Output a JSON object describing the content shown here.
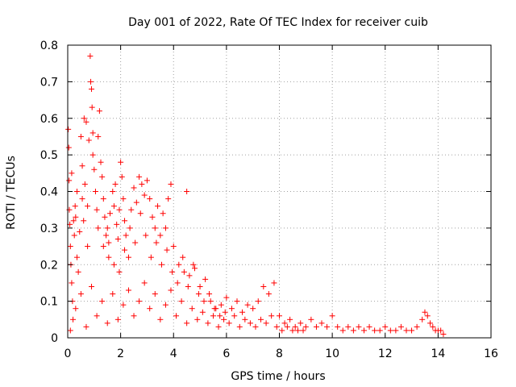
{
  "chart_data": {
    "type": "scatter",
    "title": "Day 001 of 2022, Rate Of TEC Index for receiver cuib",
    "xlabel": "GPS time / hours",
    "ylabel": "ROTI / TECUs",
    "xlim": [
      0,
      16
    ],
    "ylim": [
      0,
      0.8
    ],
    "grid": true,
    "marker": "plus",
    "color": "#ff0000",
    "x_ticks": [
      0,
      2,
      4,
      6,
      8,
      10,
      12,
      14,
      16
    ],
    "y_ticks": [
      0,
      0.1,
      0.2,
      0.3,
      0.4,
      0.5,
      0.6,
      0.7,
      0.8
    ],
    "x_tick_labels": [
      "0",
      "2",
      "4",
      "6",
      "8",
      "10",
      "12",
      "14",
      "16"
    ],
    "y_tick_labels": [
      "0",
      "0.1",
      "0.2",
      "0.3",
      "0.4",
      "0.5",
      "0.6",
      "0.7",
      "0.8"
    ],
    "series": [
      {
        "name": "ROTI",
        "points": [
          [
            0.02,
            0.57
          ],
          [
            0.04,
            0.52
          ],
          [
            0.05,
            0.43
          ],
          [
            0.06,
            0.35
          ],
          [
            0.08,
            0.31
          ],
          [
            0.1,
            0.25
          ],
          [
            0.12,
            0.2
          ],
          [
            0.15,
            0.15
          ],
          [
            0.18,
            0.1
          ],
          [
            0.2,
            0.05
          ],
          [
            0.22,
            0.32
          ],
          [
            0.25,
            0.28
          ],
          [
            0.28,
            0.36
          ],
          [
            0.3,
            0.33
          ],
          [
            0.35,
            0.22
          ],
          [
            0.4,
            0.18
          ],
          [
            0.45,
            0.29
          ],
          [
            0.5,
            0.55
          ],
          [
            0.55,
            0.38
          ],
          [
            0.6,
            0.32
          ],
          [
            0.62,
            0.6
          ],
          [
            0.65,
            0.42
          ],
          [
            0.7,
            0.59
          ],
          [
            0.75,
            0.25
          ],
          [
            0.8,
            0.54
          ],
          [
            0.85,
            0.77
          ],
          [
            0.87,
            0.7
          ],
          [
            0.9,
            0.68
          ],
          [
            0.92,
            0.63
          ],
          [
            0.95,
            0.56
          ],
          [
            1.0,
            0.46
          ],
          [
            1.05,
            0.4
          ],
          [
            1.1,
            0.35
          ],
          [
            1.15,
            0.55
          ],
          [
            1.2,
            0.62
          ],
          [
            1.25,
            0.48
          ],
          [
            1.3,
            0.44
          ],
          [
            1.35,
            0.38
          ],
          [
            1.4,
            0.33
          ],
          [
            1.45,
            0.28
          ],
          [
            1.5,
            0.3
          ],
          [
            1.55,
            0.26
          ],
          [
            1.6,
            0.34
          ],
          [
            1.7,
            0.4
          ],
          [
            1.75,
            0.36
          ],
          [
            1.8,
            0.42
          ],
          [
            1.85,
            0.31
          ],
          [
            1.9,
            0.27
          ],
          [
            1.95,
            0.35
          ],
          [
            2.0,
            0.48
          ],
          [
            2.05,
            0.44
          ],
          [
            2.1,
            0.38
          ],
          [
            2.15,
            0.32
          ],
          [
            2.2,
            0.28
          ],
          [
            2.3,
            0.22
          ],
          [
            2.4,
            0.35
          ],
          [
            2.5,
            0.41
          ],
          [
            2.6,
            0.37
          ],
          [
            2.7,
            0.44
          ],
          [
            2.8,
            0.42
          ],
          [
            2.9,
            0.39
          ],
          [
            3.0,
            0.43
          ],
          [
            3.1,
            0.38
          ],
          [
            3.2,
            0.33
          ],
          [
            3.3,
            0.3
          ],
          [
            3.4,
            0.36
          ],
          [
            3.5,
            0.28
          ],
          [
            3.6,
            0.34
          ],
          [
            3.7,
            0.3
          ],
          [
            3.8,
            0.38
          ],
          [
            3.9,
            0.42
          ],
          [
            4.0,
            0.25
          ],
          [
            4.2,
            0.2
          ],
          [
            4.4,
            0.18
          ],
          [
            4.5,
            0.4
          ],
          [
            4.6,
            0.17
          ],
          [
            4.8,
            0.19
          ],
          [
            5.0,
            0.14
          ],
          [
            5.2,
            0.16
          ],
          [
            5.4,
            0.1
          ],
          [
            5.6,
            0.08
          ],
          [
            5.8,
            0.09
          ],
          [
            6.0,
            0.11
          ],
          [
            6.2,
            0.08
          ],
          [
            6.4,
            0.1
          ],
          [
            6.6,
            0.07
          ],
          [
            6.8,
            0.09
          ],
          [
            7.0,
            0.08
          ],
          [
            7.2,
            0.1
          ],
          [
            7.4,
            0.14
          ],
          [
            7.6,
            0.12
          ],
          [
            7.8,
            0.15
          ],
          [
            8.0,
            0.06
          ],
          [
            8.2,
            0.04
          ],
          [
            8.4,
            0.05
          ],
          [
            8.6,
            0.03
          ],
          [
            8.8,
            0.04
          ],
          [
            9.0,
            0.03
          ],
          [
            9.2,
            0.05
          ],
          [
            9.4,
            0.03
          ],
          [
            9.6,
            0.04
          ],
          [
            9.8,
            0.03
          ],
          [
            10.0,
            0.06
          ],
          [
            10.2,
            0.03
          ],
          [
            10.4,
            0.02
          ],
          [
            10.6,
            0.03
          ],
          [
            10.8,
            0.02
          ],
          [
            11.0,
            0.03
          ],
          [
            11.2,
            0.02
          ],
          [
            11.4,
            0.03
          ],
          [
            11.6,
            0.02
          ],
          [
            11.8,
            0.02
          ],
          [
            12.0,
            0.03
          ],
          [
            12.2,
            0.02
          ],
          [
            12.4,
            0.02
          ],
          [
            12.6,
            0.03
          ],
          [
            12.8,
            0.02
          ],
          [
            13.0,
            0.02
          ],
          [
            13.2,
            0.03
          ],
          [
            13.4,
            0.05
          ],
          [
            13.5,
            0.07
          ],
          [
            13.6,
            0.06
          ],
          [
            13.7,
            0.04
          ],
          [
            13.8,
            0.03
          ],
          [
            13.9,
            0.02
          ],
          [
            14.0,
            0.02
          ],
          [
            14.1,
            0.02
          ],
          [
            14.2,
            0.01
          ],
          [
            0.1,
            0.02
          ],
          [
            0.3,
            0.08
          ],
          [
            0.5,
            0.12
          ],
          [
            0.7,
            0.03
          ],
          [
            0.9,
            0.14
          ],
          [
            1.1,
            0.06
          ],
          [
            1.3,
            0.1
          ],
          [
            1.5,
            0.04
          ],
          [
            1.7,
            0.12
          ],
          [
            1.9,
            0.05
          ],
          [
            2.1,
            0.09
          ],
          [
            2.3,
            0.13
          ],
          [
            2.5,
            0.06
          ],
          [
            2.7,
            0.1
          ],
          [
            2.9,
            0.15
          ],
          [
            3.1,
            0.08
          ],
          [
            3.3,
            0.12
          ],
          [
            3.5,
            0.05
          ],
          [
            3.7,
            0.09
          ],
          [
            3.9,
            0.13
          ],
          [
            4.1,
            0.06
          ],
          [
            4.3,
            0.1
          ],
          [
            4.5,
            0.04
          ],
          [
            4.7,
            0.08
          ],
          [
            4.9,
            0.05
          ],
          [
            5.1,
            0.07
          ],
          [
            5.3,
            0.04
          ],
          [
            5.5,
            0.06
          ],
          [
            5.7,
            0.03
          ],
          [
            5.9,
            0.05
          ],
          [
            6.1,
            0.04
          ],
          [
            6.3,
            0.06
          ],
          [
            6.5,
            0.03
          ],
          [
            6.7,
            0.05
          ],
          [
            6.9,
            0.04
          ],
          [
            7.1,
            0.03
          ],
          [
            7.3,
            0.05
          ],
          [
            7.5,
            0.04
          ],
          [
            7.7,
            0.06
          ],
          [
            7.9,
            0.03
          ],
          [
            8.1,
            0.02
          ],
          [
            8.3,
            0.03
          ],
          [
            8.5,
            0.02
          ],
          [
            8.7,
            0.02
          ],
          [
            8.9,
            0.02
          ],
          [
            0.15,
            0.45
          ],
          [
            0.35,
            0.4
          ],
          [
            0.55,
            0.47
          ],
          [
            0.75,
            0.36
          ],
          [
            0.95,
            0.5
          ],
          [
            1.15,
            0.3
          ],
          [
            1.35,
            0.25
          ],
          [
            1.55,
            0.22
          ],
          [
            1.75,
            0.2
          ],
          [
            1.95,
            0.18
          ],
          [
            2.15,
            0.24
          ],
          [
            2.35,
            0.3
          ],
          [
            2.55,
            0.26
          ],
          [
            2.75,
            0.34
          ],
          [
            2.95,
            0.28
          ],
          [
            3.15,
            0.22
          ],
          [
            3.35,
            0.26
          ],
          [
            3.55,
            0.2
          ],
          [
            3.75,
            0.24
          ],
          [
            3.95,
            0.18
          ],
          [
            4.15,
            0.15
          ],
          [
            4.35,
            0.22
          ],
          [
            4.55,
            0.14
          ],
          [
            4.75,
            0.2
          ],
          [
            4.95,
            0.12
          ],
          [
            5.15,
            0.1
          ],
          [
            5.35,
            0.12
          ],
          [
            5.55,
            0.08
          ],
          [
            5.75,
            0.06
          ],
          [
            5.95,
            0.07
          ]
        ]
      }
    ]
  }
}
